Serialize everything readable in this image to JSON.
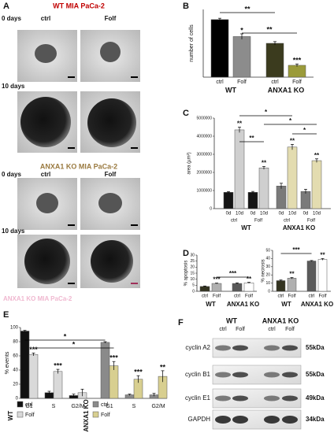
{
  "panel_labels": [
    "A",
    "B",
    "C",
    "D",
    "E",
    "F"
  ],
  "panel_a": {
    "titles": [
      "WT MIA PaCa-2",
      "ANXA1 KO MIA PaCa-2"
    ],
    "rows": [
      "0 days",
      "10 days",
      "0 days",
      "10 days"
    ],
    "columns": [
      "ctrl",
      "Folf",
      "ctrl",
      "Folf"
    ],
    "footer": "ANXA1 KO MIA PaCa-2"
  },
  "chart_data": [
    {
      "type": "bar",
      "ylabel": "number of cells",
      "ylim": [
        0,
        200
      ],
      "groups": [
        {
          "name": "WT",
          "categories": [
            "ctrl",
            "Folf"
          ],
          "series": [
            {
              "values": [
                170,
                120
              ],
              "errors": [
                4,
                8
              ],
              "colors": [
                "#000000",
                "#8c8c8c"
              ],
              "stars": [
                null,
                "*"
              ]
            }
          ]
        },
        {
          "name": "ANXA1 KO",
          "categories": [
            "ctrl",
            "Folf"
          ],
          "series": [
            {
              "values": [
                100,
                35
              ],
              "errors": [
                5,
                4
              ],
              "colors": [
                "#3b3b1e",
                "#9b9b3a"
              ],
              "stars": [
                null,
                "***"
              ]
            }
          ]
        }
      ],
      "brackets": [
        "**",
        "**"
      ]
    },
    {
      "type": "bar",
      "ylabel": "area (µm²)",
      "ylim": [
        0,
        5000000
      ],
      "yticks": [
        0,
        1000000,
        2000000,
        3000000,
        4000000,
        5000000
      ],
      "groups": [
        {
          "name": "WT",
          "categories": [
            "ctrl",
            "Folf"
          ],
          "series": [
            {
              "name": "0d",
              "color": "#151515",
              "values": [
                900000,
                900000
              ],
              "errors": [
                40000,
                50000
              ]
            },
            {
              "name": "10d",
              "color": "#cfcfcf",
              "values": [
                4350000,
                2250000
              ],
              "errors": [
                150000,
                80000
              ],
              "stars": [
                "**",
                "**"
              ]
            }
          ]
        },
        {
          "name": "ANXA1 KO",
          "categories": [
            "ctrl",
            "Folf"
          ],
          "series": [
            {
              "name": "0d",
              "color": "#7a7a7a",
              "values": [
                1250000,
                950000
              ],
              "errors": [
                150000,
                120000
              ]
            },
            {
              "name": "10d",
              "color": "#e3dcb0",
              "values": [
                3400000,
                2650000
              ],
              "errors": [
                150000,
                100000
              ],
              "stars": [
                "**",
                "**"
              ]
            }
          ]
        }
      ],
      "brackets": [
        "**",
        "*",
        "*",
        "*"
      ]
    },
    {
      "type": "bar",
      "ylabel": "% apoptosis",
      "ylim": [
        0,
        30
      ],
      "yticks": [
        0,
        5,
        10,
        15,
        20,
        25,
        30
      ],
      "groups": [
        {
          "name": "WT",
          "categories": [
            "ctrl",
            "Folf"
          ],
          "series": [
            {
              "values": [
                4,
                6.5
              ],
              "errors": [
                0.4,
                0.3
              ],
              "colors": [
                "#333320",
                "#b0b0b0"
              ],
              "stars": [
                null,
                "***"
              ]
            }
          ]
        },
        {
          "name": "ANXA1 KO",
          "categories": [
            "ctrl",
            "Folf"
          ],
          "series": [
            {
              "values": [
                6.5,
                7
              ],
              "errors": [
                0.5,
                0.4
              ],
              "colors": [
                "#5a5a5a",
                "#ffffff"
              ],
              "stars": [
                null,
                "**"
              ]
            }
          ]
        }
      ],
      "brackets": [
        "***"
      ]
    },
    {
      "type": "bar",
      "ylabel": "% necrosis",
      "ylim": [
        0,
        50
      ],
      "yticks": [
        0,
        10,
        20,
        30,
        40,
        50
      ],
      "groups": [
        {
          "name": "WT",
          "categories": [
            "ctrl",
            "Folf"
          ],
          "series": [
            {
              "values": [
                13,
                16
              ],
              "errors": [
                0.8,
                0.8
              ],
              "colors": [
                "#333320",
                "#b0b0b0"
              ],
              "stars": [
                null,
                "**"
              ]
            }
          ]
        },
        {
          "name": "ANXA1 KO",
          "categories": [
            "ctrl",
            "Folf"
          ],
          "series": [
            {
              "values": [
                37,
                39
              ],
              "errors": [
                0.6,
                1
              ],
              "colors": [
                "#5a5a5a",
                "#ffffff"
              ],
              "stars": [
                null,
                "**"
              ]
            }
          ]
        }
      ],
      "brackets": [
        "***"
      ]
    },
    {
      "type": "bar",
      "ylabel": "% events",
      "ylim": [
        0,
        100
      ],
      "yticks": [
        0,
        20,
        40,
        60,
        80,
        100
      ],
      "groups": [
        {
          "name": "WT",
          "categories": [
            "G1",
            "S",
            "G2/M"
          ],
          "series": [
            {
              "name": "ctrl",
              "color": "#111111",
              "values": [
                95,
                8,
                4
              ],
              "errors": [
                1,
                2,
                2
              ]
            },
            {
              "name": "Folf",
              "color": "#d9d9d9",
              "values": [
                62,
                38,
                8
              ],
              "errors": [
                2,
                3,
                5
              ],
              "stars": [
                "***",
                "***",
                null
              ]
            }
          ]
        },
        {
          "name": "ANXA1 KO",
          "categories": [
            "G1",
            "S",
            "G2/M"
          ],
          "series": [
            {
              "name": "ctrl",
              "color": "#8a8a8a",
              "values": [
                79,
                5,
                5
              ],
              "errors": [
                1,
                1,
                2
              ]
            },
            {
              "name": "Folf",
              "color": "#d8cf90",
              "values": [
                46,
                27,
                31
              ],
              "errors": [
                6,
                5,
                8
              ],
              "stars": [
                "***",
                "***",
                "**"
              ]
            }
          ]
        }
      ],
      "brackets": [
        "*",
        "*"
      ]
    }
  ],
  "panel_f": {
    "groups": [
      "WT",
      "ANXA1 KO"
    ],
    "lanes": [
      "ctrl",
      "Folf",
      "ctrl",
      "Folf"
    ],
    "proteins": [
      "cyclin A2",
      "cyclin B1",
      "cyclin E1",
      "GAPDH"
    ],
    "sizes": [
      "55kDa",
      "55kDa",
      "49kDa",
      "34kDa"
    ]
  }
}
